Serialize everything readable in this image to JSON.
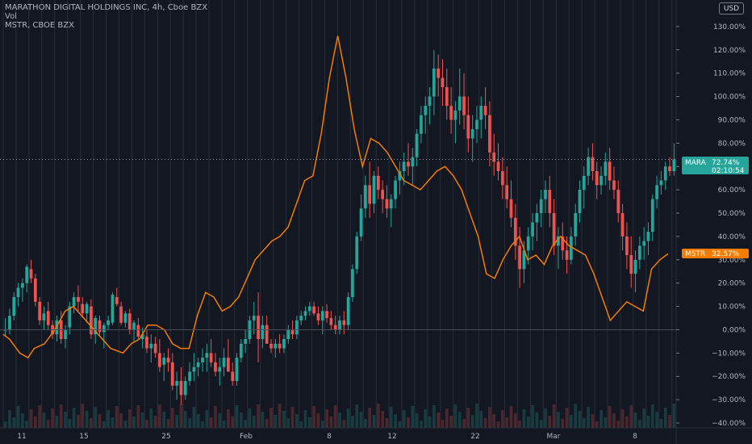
{
  "legend": {
    "title": "MARATHON DIGITAL HOLDINGS INC, 4h, Cboe BZX",
    "vol": "Vol",
    "compare": "MSTR, CBOE BZX"
  },
  "currency": "USD",
  "badges": {
    "mara_symbol": "MARA",
    "mara_value": "72.74%",
    "mara_timer": "02:10:54",
    "mstr_symbol": "MSTR",
    "mstr_value": "32.57%"
  },
  "colors": {
    "background": "#131722",
    "up": "#26a69a",
    "down": "#ef5350",
    "compare_line": "#f57c00",
    "grid": "#2a2e39"
  },
  "chart_data": {
    "type": "line",
    "title": "MARATHON DIGITAL HOLDINGS INC, 4h, Cboe BZX",
    "ylim": [
      -40,
      140
    ],
    "y_ticks": [
      "140.00%",
      "130.00%",
      "120.00%",
      "110.00%",
      "100.00%",
      "90.00%",
      "80.00%",
      "70.00%",
      "60.00%",
      "50.00%",
      "40.00%",
      "30.00%",
      "20.00%",
      "10.00%",
      "0.00%",
      "−10.00%",
      "−20.00%",
      "−30.00%",
      "−40.00%"
    ],
    "x_ticks": [
      "11",
      "15",
      "25",
      "Feb",
      "8",
      "12",
      "22",
      "Mar",
      "8"
    ],
    "series": [
      {
        "name": "MARA",
        "type": "candlestick",
        "values": [
          [
            0,
            5,
            -3,
            0
          ],
          [
            0,
            9,
            -2,
            6
          ],
          [
            6,
            16,
            4,
            14
          ],
          [
            14,
            20,
            10,
            18
          ],
          [
            18,
            22,
            12,
            20
          ],
          [
            20,
            28,
            16,
            27
          ],
          [
            26,
            30,
            20,
            22
          ],
          [
            22,
            24,
            10,
            12
          ],
          [
            12,
            14,
            2,
            4
          ],
          [
            4,
            10,
            0,
            7
          ],
          [
            8,
            12,
            0,
            2
          ],
          [
            2,
            4,
            -4,
            -2
          ],
          [
            -2,
            6,
            -5,
            4
          ],
          [
            4,
            8,
            -6,
            -4
          ],
          [
            -4,
            2,
            -8,
            0
          ],
          [
            1,
            12,
            -2,
            10
          ],
          [
            10,
            16,
            7,
            14
          ],
          [
            14,
            19,
            8,
            12
          ],
          [
            11,
            14,
            5,
            7
          ],
          [
            7,
            12,
            3,
            11
          ],
          [
            10,
            13,
            -4,
            -2
          ],
          [
            -2,
            6,
            -6,
            5
          ],
          [
            4,
            6,
            -3,
            -1
          ],
          [
            -1,
            3,
            -8,
            2
          ],
          [
            2,
            6,
            0,
            4
          ],
          [
            3,
            16,
            2,
            15
          ],
          [
            14,
            18,
            10,
            11
          ],
          [
            10,
            12,
            2,
            3
          ],
          [
            3,
            8,
            1,
            7
          ],
          [
            7,
            9,
            -2,
            0
          ],
          [
            0,
            4,
            -5,
            3
          ],
          [
            2,
            5,
            -4,
            -3
          ],
          [
            -4,
            1,
            -8,
            -2
          ],
          [
            -3,
            0,
            -10,
            -8
          ],
          [
            -8,
            -2,
            -14,
            -6
          ],
          [
            -6,
            -3,
            -12,
            -10
          ],
          [
            -10,
            -4,
            -18,
            -16
          ],
          [
            -15,
            -10,
            -22,
            -12
          ],
          [
            -12,
            -8,
            -18,
            -14
          ],
          [
            -14,
            -10,
            -26,
            -24
          ],
          [
            -24,
            -18,
            -30,
            -22
          ],
          [
            -22,
            -16,
            -32,
            -28
          ],
          [
            -28,
            -20,
            -30,
            -22
          ],
          [
            -22,
            -14,
            -24,
            -18
          ],
          [
            -18,
            -10,
            -22,
            -16
          ],
          [
            -16,
            -12,
            -20,
            -14
          ],
          [
            -14,
            -8,
            -18,
            -12
          ],
          [
            -12,
            -6,
            -18,
            -10
          ],
          [
            -10,
            -4,
            -16,
            -14
          ],
          [
            -14,
            -10,
            -20,
            -18
          ],
          [
            -18,
            -12,
            -24,
            -16
          ],
          [
            -16,
            -8,
            -20,
            -12
          ],
          [
            -12,
            -4,
            -16,
            -18
          ],
          [
            -18,
            -14,
            -24,
            -22
          ],
          [
            -22,
            -10,
            -24,
            -12
          ],
          [
            -12,
            -4,
            -14,
            -6
          ],
          [
            -6,
            0,
            -10,
            -4
          ],
          [
            -4,
            6,
            -6,
            4
          ],
          [
            4,
            12,
            -2,
            6
          ],
          [
            6,
            16,
            -14,
            -4
          ],
          [
            -4,
            6,
            -8,
            2
          ],
          [
            2,
            6,
            -4,
            -6
          ],
          [
            -6,
            -4,
            -10,
            -8
          ],
          [
            -8,
            -4,
            -12,
            -6
          ],
          [
            -6,
            -2,
            -10,
            -8
          ],
          [
            -8,
            -2,
            -10,
            -4
          ],
          [
            -4,
            2,
            -6,
            0
          ],
          [
            0,
            4,
            -4,
            -2
          ],
          [
            -2,
            6,
            -4,
            4
          ],
          [
            4,
            8,
            2,
            6
          ],
          [
            6,
            10,
            4,
            8
          ],
          [
            8,
            12,
            6,
            10
          ],
          [
            10,
            12,
            6,
            7
          ],
          [
            7,
            10,
            2,
            4
          ],
          [
            4,
            10,
            -2,
            8
          ],
          [
            8,
            11,
            3,
            5
          ],
          [
            5,
            8,
            0,
            2
          ],
          [
            2,
            6,
            -2,
            0
          ],
          [
            0,
            6,
            -2,
            4
          ],
          [
            4,
            8,
            -2,
            2
          ],
          [
            2,
            16,
            0,
            14
          ],
          [
            14,
            28,
            12,
            26
          ],
          [
            26,
            42,
            24,
            40
          ],
          [
            40,
            58,
            38,
            52
          ],
          [
            52,
            66,
            48,
            62
          ],
          [
            62,
            72,
            48,
            54
          ],
          [
            54,
            68,
            50,
            66
          ],
          [
            66,
            70,
            56,
            60
          ],
          [
            60,
            64,
            50,
            56
          ],
          [
            56,
            62,
            48,
            52
          ],
          [
            52,
            58,
            44,
            56
          ],
          [
            56,
            66,
            52,
            64
          ],
          [
            64,
            72,
            58,
            68
          ],
          [
            68,
            76,
            62,
            72
          ],
          [
            72,
            80,
            66,
            70
          ],
          [
            70,
            78,
            62,
            74
          ],
          [
            74,
            86,
            70,
            84
          ],
          [
            84,
            96,
            80,
            92
          ],
          [
            92,
            100,
            84,
            96
          ],
          [
            96,
            104,
            88,
            100
          ],
          [
            100,
            120,
            92,
            112
          ],
          [
            112,
            118,
            100,
            108
          ],
          [
            108,
            116,
            96,
            104
          ],
          [
            104,
            112,
            90,
            96
          ],
          [
            96,
            104,
            84,
            90
          ],
          [
            90,
            98,
            80,
            94
          ],
          [
            94,
            112,
            88,
            100
          ],
          [
            100,
            110,
            86,
            92
          ],
          [
            92,
            100,
            76,
            82
          ],
          [
            82,
            92,
            72,
            86
          ],
          [
            86,
            96,
            80,
            90
          ],
          [
            90,
            100,
            82,
            96
          ],
          [
            96,
            104,
            86,
            92
          ],
          [
            92,
            98,
            70,
            76
          ],
          [
            76,
            84,
            66,
            72
          ],
          [
            72,
            80,
            64,
            68
          ],
          [
            68,
            74,
            56,
            62
          ],
          [
            62,
            70,
            52,
            56
          ],
          [
            56,
            64,
            44,
            48
          ],
          [
            48,
            54,
            30,
            36
          ],
          [
            36,
            44,
            18,
            26
          ],
          [
            26,
            38,
            20,
            34
          ],
          [
            34,
            44,
            28,
            40
          ],
          [
            40,
            50,
            34,
            46
          ],
          [
            46,
            54,
            38,
            50
          ],
          [
            50,
            60,
            44,
            56
          ],
          [
            56,
            64,
            50,
            60
          ],
          [
            60,
            66,
            44,
            50
          ],
          [
            50,
            56,
            32,
            36
          ],
          [
            36,
            44,
            26,
            40
          ],
          [
            40,
            46,
            30,
            34
          ],
          [
            34,
            40,
            24,
            30
          ],
          [
            30,
            44,
            28,
            40
          ],
          [
            40,
            54,
            36,
            50
          ],
          [
            50,
            64,
            46,
            60
          ],
          [
            60,
            70,
            52,
            66
          ],
          [
            66,
            78,
            62,
            74
          ],
          [
            74,
            80,
            64,
            68
          ],
          [
            68,
            72,
            56,
            62
          ],
          [
            62,
            70,
            58,
            66
          ],
          [
            66,
            76,
            62,
            72
          ],
          [
            72,
            78,
            60,
            64
          ],
          [
            64,
            70,
            56,
            60
          ],
          [
            60,
            64,
            46,
            50
          ],
          [
            50,
            54,
            34,
            40
          ],
          [
            40,
            46,
            26,
            32
          ],
          [
            32,
            40,
            18,
            24
          ],
          [
            24,
            34,
            16,
            30
          ],
          [
            30,
            40,
            26,
            36
          ],
          [
            36,
            44,
            30,
            38
          ],
          [
            38,
            46,
            32,
            42
          ],
          [
            42,
            58,
            38,
            56
          ],
          [
            56,
            66,
            52,
            62
          ],
          [
            62,
            68,
            58,
            64
          ],
          [
            64,
            72,
            60,
            70
          ],
          [
            70,
            74,
            66,
            68
          ],
          [
            68,
            80,
            66,
            73
          ]
        ]
      },
      {
        "name": "MSTR",
        "type": "line",
        "values": [
          [
            0,
            -2
          ],
          [
            3,
            -4
          ],
          [
            8,
            -10
          ],
          [
            12,
            -12
          ],
          [
            15,
            -8
          ],
          [
            20,
            -6
          ],
          [
            25,
            0
          ],
          [
            30,
            8
          ],
          [
            34,
            10
          ],
          [
            40,
            4
          ],
          [
            46,
            -2
          ],
          [
            52,
            -8
          ],
          [
            58,
            -10
          ],
          [
            62,
            -6
          ],
          [
            66,
            -4
          ],
          [
            70,
            2
          ],
          [
            74,
            2
          ],
          [
            78,
            0
          ],
          [
            82,
            -6
          ],
          [
            86,
            -8
          ],
          [
            90,
            -8
          ],
          [
            94,
            6
          ],
          [
            98,
            16
          ],
          [
            102,
            14
          ],
          [
            106,
            8
          ],
          [
            110,
            10
          ],
          [
            114,
            14
          ],
          [
            118,
            22
          ],
          [
            122,
            30
          ],
          [
            126,
            34
          ],
          [
            130,
            38
          ],
          [
            134,
            40
          ],
          [
            138,
            44
          ],
          [
            142,
            54
          ],
          [
            146,
            64
          ],
          [
            150,
            66
          ],
          [
            154,
            84
          ],
          [
            158,
            108
          ],
          [
            162,
            126
          ],
          [
            166,
            108
          ],
          [
            170,
            86
          ],
          [
            174,
            70
          ],
          [
            178,
            82
          ],
          [
            182,
            80
          ],
          [
            186,
            76
          ],
          [
            190,
            70
          ],
          [
            194,
            64
          ],
          [
            198,
            62
          ],
          [
            202,
            60
          ],
          [
            206,
            64
          ],
          [
            210,
            68
          ],
          [
            214,
            70
          ],
          [
            218,
            66
          ],
          [
            222,
            60
          ],
          [
            226,
            50
          ],
          [
            230,
            40
          ],
          [
            234,
            24
          ],
          [
            238,
            22
          ],
          [
            242,
            30
          ],
          [
            246,
            36
          ],
          [
            250,
            40
          ],
          [
            254,
            30
          ],
          [
            258,
            32
          ],
          [
            262,
            28
          ],
          [
            266,
            36
          ],
          [
            270,
            40
          ],
          [
            274,
            36
          ],
          [
            278,
            34
          ],
          [
            282,
            32
          ],
          [
            286,
            24
          ],
          [
            290,
            14
          ],
          [
            294,
            4
          ],
          [
            298,
            8
          ],
          [
            302,
            12
          ],
          [
            306,
            10
          ],
          [
            310,
            8
          ],
          [
            314,
            26
          ],
          [
            318,
            30
          ],
          [
            322,
            32.57
          ]
        ]
      }
    ]
  }
}
